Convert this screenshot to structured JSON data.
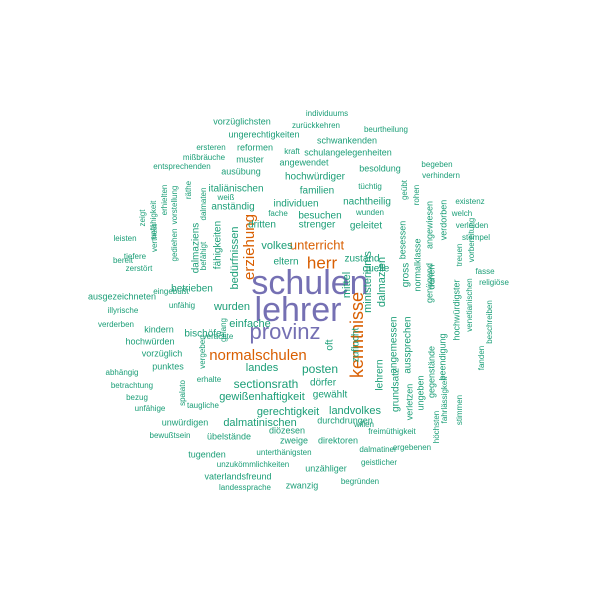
{
  "chart_data": {
    "type": "wordcloud",
    "colors": {
      "large": "#7570b3",
      "medium": "#d95f02",
      "small": "#1b9e77"
    },
    "words": [
      {
        "text": "schulen",
        "weight": 34,
        "color": "large"
      },
      {
        "text": "lehrer",
        "weight": 34,
        "color": "large"
      },
      {
        "text": "provinz",
        "weight": 24,
        "color": "large"
      },
      {
        "text": "kenntnisse",
        "weight": 18,
        "color": "medium"
      },
      {
        "text": "normalschulen",
        "weight": 16,
        "color": "medium"
      },
      {
        "text": "herr",
        "weight": 18,
        "color": "medium"
      },
      {
        "text": "erziehung",
        "weight": 16,
        "color": "medium"
      },
      {
        "text": "unterricht",
        "weight": 14,
        "color": "medium"
      },
      {
        "text": "sectionsrath",
        "weight": 12,
        "color": "small"
      },
      {
        "text": "posten",
        "weight": 12,
        "color": "small"
      },
      {
        "text": "landes",
        "weight": 12,
        "color": "small"
      },
      {
        "text": "volkes",
        "weight": 12,
        "color": "small"
      },
      {
        "text": "dalmazien",
        "weight": 12,
        "color": "small"
      },
      {
        "text": "ministeriums",
        "weight": 12,
        "color": "small"
      },
      {
        "text": "mittel",
        "weight": 12,
        "color": "small"
      },
      {
        "text": "zuflucht",
        "weight": 11,
        "color": "small"
      },
      {
        "text": "wurden",
        "weight": 11,
        "color": "small"
      },
      {
        "text": "einfache",
        "weight": 11,
        "color": "small"
      },
      {
        "text": "bedürfnissen",
        "weight": 11,
        "color": "small"
      },
      {
        "text": "gewißenhaftigkeit",
        "weight": 11,
        "color": "small"
      },
      {
        "text": "dalmatinischen",
        "weight": 11,
        "color": "small"
      },
      {
        "text": "landvolkes",
        "weight": 11,
        "color": "small"
      },
      {
        "text": "gerechtigkeit",
        "weight": 11,
        "color": "small"
      },
      {
        "text": "dörfer",
        "weight": 10,
        "color": "small"
      },
      {
        "text": "gewählt",
        "weight": 10,
        "color": "small"
      },
      {
        "text": "zustand",
        "weight": 10,
        "color": "small"
      },
      {
        "text": "eltern",
        "weight": 10,
        "color": "small"
      },
      {
        "text": "familien",
        "weight": 10,
        "color": "small"
      },
      {
        "text": "besuchen",
        "weight": 10,
        "color": "small"
      },
      {
        "text": "individuen",
        "weight": 10,
        "color": "small"
      },
      {
        "text": "dritten",
        "weight": 10,
        "color": "small"
      },
      {
        "text": "strenger",
        "weight": 10,
        "color": "small"
      },
      {
        "text": "geleitet",
        "weight": 10,
        "color": "small"
      },
      {
        "text": "nachtheilig",
        "weight": 10,
        "color": "small"
      },
      {
        "text": "hochwürdiger",
        "weight": 10,
        "color": "small"
      },
      {
        "text": "italiänischen",
        "weight": 10,
        "color": "small"
      },
      {
        "text": "anständig",
        "weight": 10,
        "color": "small"
      },
      {
        "text": "fähigkeiten",
        "weight": 10,
        "color": "small"
      },
      {
        "text": "dalmaziens",
        "weight": 10,
        "color": "small"
      },
      {
        "text": "betrieben",
        "weight": 10,
        "color": "small"
      },
      {
        "text": "bischöfe",
        "weight": 10,
        "color": "small"
      },
      {
        "text": "angemessen",
        "weight": 10,
        "color": "small"
      },
      {
        "text": "gross",
        "weight": 10,
        "color": "small"
      },
      {
        "text": "aussprechen",
        "weight": 10,
        "color": "small"
      },
      {
        "text": "lehrern",
        "weight": 10,
        "color": "small"
      },
      {
        "text": "grundsatz",
        "weight": 10,
        "color": "small"
      },
      {
        "text": "quelle",
        "weight": 10,
        "color": "small"
      },
      {
        "text": "oft",
        "weight": 10,
        "color": "small"
      },
      {
        "text": "normalklasse",
        "weight": 9,
        "color": "small"
      },
      {
        "text": "besessen",
        "weight": 9,
        "color": "small"
      },
      {
        "text": "denen",
        "weight": 9,
        "color": "small"
      },
      {
        "text": "angewiesen",
        "weight": 9,
        "color": "small"
      },
      {
        "text": "genügend",
        "weight": 9,
        "color": "small"
      },
      {
        "text": "verdorben",
        "weight": 9,
        "color": "small"
      },
      {
        "text": "beendigung",
        "weight": 9,
        "color": "small"
      },
      {
        "text": "verletzen",
        "weight": 9,
        "color": "small"
      },
      {
        "text": "gegenstände",
        "weight": 9,
        "color": "small"
      },
      {
        "text": "ungeben",
        "weight": 9,
        "color": "small"
      },
      {
        "text": "hochwürdigster",
        "weight": 9,
        "color": "small"
      },
      {
        "text": "fahrlässigkeit",
        "weight": 8,
        "color": "small"
      },
      {
        "text": "venetianischen",
        "weight": 8,
        "color": "small"
      },
      {
        "text": "höchsten",
        "weight": 8,
        "color": "small"
      },
      {
        "text": "stimmen",
        "weight": 8,
        "color": "small"
      },
      {
        "text": "fanden",
        "weight": 8,
        "color": "small"
      },
      {
        "text": "beschreiben",
        "weight": 8,
        "color": "small"
      },
      {
        "text": "religiöse",
        "weight": 8,
        "color": "small"
      },
      {
        "text": "fasse",
        "weight": 8,
        "color": "small"
      },
      {
        "text": "vorbereitung",
        "weight": 8,
        "color": "small"
      },
      {
        "text": "treuen",
        "weight": 8,
        "color": "small"
      },
      {
        "text": "stempel",
        "weight": 8,
        "color": "small"
      },
      {
        "text": "verleiden",
        "weight": 8,
        "color": "small"
      },
      {
        "text": "welch",
        "weight": 8,
        "color": "small"
      },
      {
        "text": "existenz",
        "weight": 8,
        "color": "small"
      },
      {
        "text": "verhindern",
        "weight": 8,
        "color": "small"
      },
      {
        "text": "begeben",
        "weight": 8,
        "color": "small"
      },
      {
        "text": "rohen",
        "weight": 8,
        "color": "small"
      },
      {
        "text": "geübt",
        "weight": 8,
        "color": "small"
      },
      {
        "text": "wunden",
        "weight": 8,
        "color": "small"
      },
      {
        "text": "tüchtig",
        "weight": 8,
        "color": "small"
      },
      {
        "text": "besoldung",
        "weight": 9,
        "color": "small"
      },
      {
        "text": "schulangelegenheiten",
        "weight": 9,
        "color": "small"
      },
      {
        "text": "schwankenden",
        "weight": 9,
        "color": "small"
      },
      {
        "text": "beurtheilung",
        "weight": 8,
        "color": "small"
      },
      {
        "text": "zurückkehren",
        "weight": 8,
        "color": "small"
      },
      {
        "text": "individuums",
        "weight": 8,
        "color": "small"
      },
      {
        "text": "vorzüglichsten",
        "weight": 9,
        "color": "small"
      },
      {
        "text": "ungerechtigkeiten",
        "weight": 9,
        "color": "small"
      },
      {
        "text": "ersteren",
        "weight": 8,
        "color": "small"
      },
      {
        "text": "reformen",
        "weight": 9,
        "color": "small"
      },
      {
        "text": "kraft",
        "weight": 8,
        "color": "small"
      },
      {
        "text": "mißbräuche",
        "weight": 8,
        "color": "small"
      },
      {
        "text": "muster",
        "weight": 9,
        "color": "small"
      },
      {
        "text": "entsprechenden",
        "weight": 8,
        "color": "small"
      },
      {
        "text": "angewendet",
        "weight": 9,
        "color": "small"
      },
      {
        "text": "ausübung",
        "weight": 9,
        "color": "small"
      },
      {
        "text": "erhielten",
        "weight": 8,
        "color": "small"
      },
      {
        "text": "vorstellung",
        "weight": 8,
        "color": "small"
      },
      {
        "text": "räthe",
        "weight": 8,
        "color": "small"
      },
      {
        "text": "dalmaten",
        "weight": 8,
        "color": "small"
      },
      {
        "text": "weiß",
        "weight": 8,
        "color": "small"
      },
      {
        "text": "fache",
        "weight": 8,
        "color": "small"
      },
      {
        "text": "zeigt",
        "weight": 8,
        "color": "small"
      },
      {
        "text": "vertheilt",
        "weight": 8,
        "color": "small"
      },
      {
        "text": "unfähigkeit",
        "weight": 8,
        "color": "small"
      },
      {
        "text": "gediehen",
        "weight": 8,
        "color": "small"
      },
      {
        "text": "befähigt",
        "weight": 8,
        "color": "small"
      },
      {
        "text": "leisten",
        "weight": 8,
        "color": "small"
      },
      {
        "text": "tiefere",
        "weight": 8,
        "color": "small"
      },
      {
        "text": "bereit",
        "weight": 8,
        "color": "small"
      },
      {
        "text": "zerstört",
        "weight": 8,
        "color": "small"
      },
      {
        "text": "ausgezeichneten",
        "weight": 9,
        "color": "small"
      },
      {
        "text": "eingebüßt",
        "weight": 8,
        "color": "small"
      },
      {
        "text": "illyrische",
        "weight": 8,
        "color": "small"
      },
      {
        "text": "unfähig",
        "weight": 8,
        "color": "small"
      },
      {
        "text": "verderben",
        "weight": 8,
        "color": "small"
      },
      {
        "text": "kindern",
        "weight": 9,
        "color": "small"
      },
      {
        "text": "hochwürden",
        "weight": 9,
        "color": "small"
      },
      {
        "text": "vorzüglich",
        "weight": 9,
        "color": "small"
      },
      {
        "text": "punktes",
        "weight": 9,
        "color": "small"
      },
      {
        "text": "abhängig",
        "weight": 8,
        "color": "small"
      },
      {
        "text": "betrachtung",
        "weight": 8,
        "color": "small"
      },
      {
        "text": "bezug",
        "weight": 8,
        "color": "small"
      },
      {
        "text": "unfähige",
        "weight": 8,
        "color": "small"
      },
      {
        "text": "vergeben",
        "weight": 8,
        "color": "small"
      },
      {
        "text": "gelang",
        "weight": 8,
        "color": "small"
      },
      {
        "text": "verachte",
        "weight": 8,
        "color": "small"
      },
      {
        "text": "spalato",
        "weight": 8,
        "color": "small"
      },
      {
        "text": "erhalte",
        "weight": 8,
        "color": "small"
      },
      {
        "text": "taugliche",
        "weight": 8,
        "color": "small"
      },
      {
        "text": "unwürdigen",
        "weight": 9,
        "color": "small"
      },
      {
        "text": "bewußtsein",
        "weight": 8,
        "color": "small"
      },
      {
        "text": "übelstände",
        "weight": 9,
        "color": "small"
      },
      {
        "text": "diözesen",
        "weight": 9,
        "color": "small"
      },
      {
        "text": "zweige",
        "weight": 9,
        "color": "small"
      },
      {
        "text": "direktoren",
        "weight": 9,
        "color": "small"
      },
      {
        "text": "durchdrungen",
        "weight": 9,
        "color": "small"
      },
      {
        "text": "freimüthigkeit",
        "weight": 8,
        "color": "small"
      },
      {
        "text": "willen",
        "weight": 8,
        "color": "small"
      },
      {
        "text": "ergebenen",
        "weight": 8,
        "color": "small"
      },
      {
        "text": "dalmatiner",
        "weight": 8,
        "color": "small"
      },
      {
        "text": "geistlicher",
        "weight": 8,
        "color": "small"
      },
      {
        "text": "tugenden",
        "weight": 9,
        "color": "small"
      },
      {
        "text": "unterthänigsten",
        "weight": 8,
        "color": "small"
      },
      {
        "text": "unzukömmlichkeiten",
        "weight": 8,
        "color": "small"
      },
      {
        "text": "unzähliger",
        "weight": 9,
        "color": "small"
      },
      {
        "text": "vaterlandsfreund",
        "weight": 9,
        "color": "small"
      },
      {
        "text": "landessprache",
        "weight": 8,
        "color": "small"
      },
      {
        "text": "zwanzig",
        "weight": 9,
        "color": "small"
      },
      {
        "text": "begründen",
        "weight": 8,
        "color": "small"
      }
    ]
  }
}
